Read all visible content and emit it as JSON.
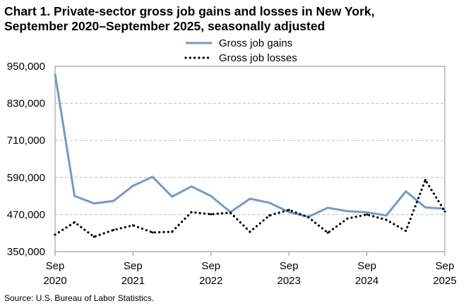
{
  "title_line1": "Chart 1. Private-sector gross job gains and losses in New York,",
  "title_line2": "September 2020–September 2025, seasonally adjusted",
  "source": "Source: U.S. Bureau of Labor Statistics.",
  "chart_data": {
    "type": "line",
    "title": "Chart 1. Private-sector gross job gains and losses in New York, September 2020–September 2025, seasonally adjusted",
    "xlabel": "",
    "ylabel": "",
    "ylim": [
      350000,
      950000
    ],
    "yticks": [
      350000,
      470000,
      590000,
      710000,
      830000,
      950000
    ],
    "ytick_labels": [
      "350,000",
      "470,000",
      "590,000",
      "710,000",
      "830,000",
      "950,000"
    ],
    "xtick_labels": [
      {
        "month": "Sep",
        "year": "2020",
        "index": 0
      },
      {
        "month": "Sep",
        "year": "2021",
        "index": 4
      },
      {
        "month": "Sep",
        "year": "2022",
        "index": 8
      },
      {
        "month": "Sep",
        "year": "2023",
        "index": 12
      },
      {
        "month": "Sep",
        "year": "2024",
        "index": 16
      },
      {
        "month": "Sep",
        "year": "2025",
        "index": 20
      }
    ],
    "x": [
      "Sep 2020",
      "Dec 2020",
      "Mar 2021",
      "Jun 2021",
      "Sep 2021",
      "Dec 2021",
      "Mar 2022",
      "Jun 2022",
      "Sep 2022",
      "Dec 2022",
      "Mar 2023",
      "Jun 2023",
      "Sep 2023",
      "Dec 2023",
      "Mar 2024",
      "Jun 2024",
      "Sep 2024",
      "Dec 2024",
      "Mar 2025",
      "Jun 2025",
      "Sep 2025"
    ],
    "grid": "horizontal",
    "legend_position": "top",
    "series": [
      {
        "name": "Gross job gains",
        "style": "solid",
        "color": "#6f9bd1",
        "values": [
          925000,
          530000,
          506000,
          514000,
          563000,
          592000,
          528000,
          561000,
          530000,
          478000,
          521000,
          508000,
          478000,
          463000,
          492000,
          481000,
          477000,
          467000,
          545000,
          493000,
          489000
        ]
      },
      {
        "name": "Gross job losses",
        "style": "dotted",
        "color": "#000000",
        "values": [
          405000,
          445000,
          398000,
          420000,
          435000,
          412000,
          414000,
          478000,
          471000,
          476000,
          414000,
          467000,
          485000,
          461000,
          411000,
          457000,
          470000,
          453000,
          417000,
          582000,
          480000
        ]
      }
    ]
  }
}
